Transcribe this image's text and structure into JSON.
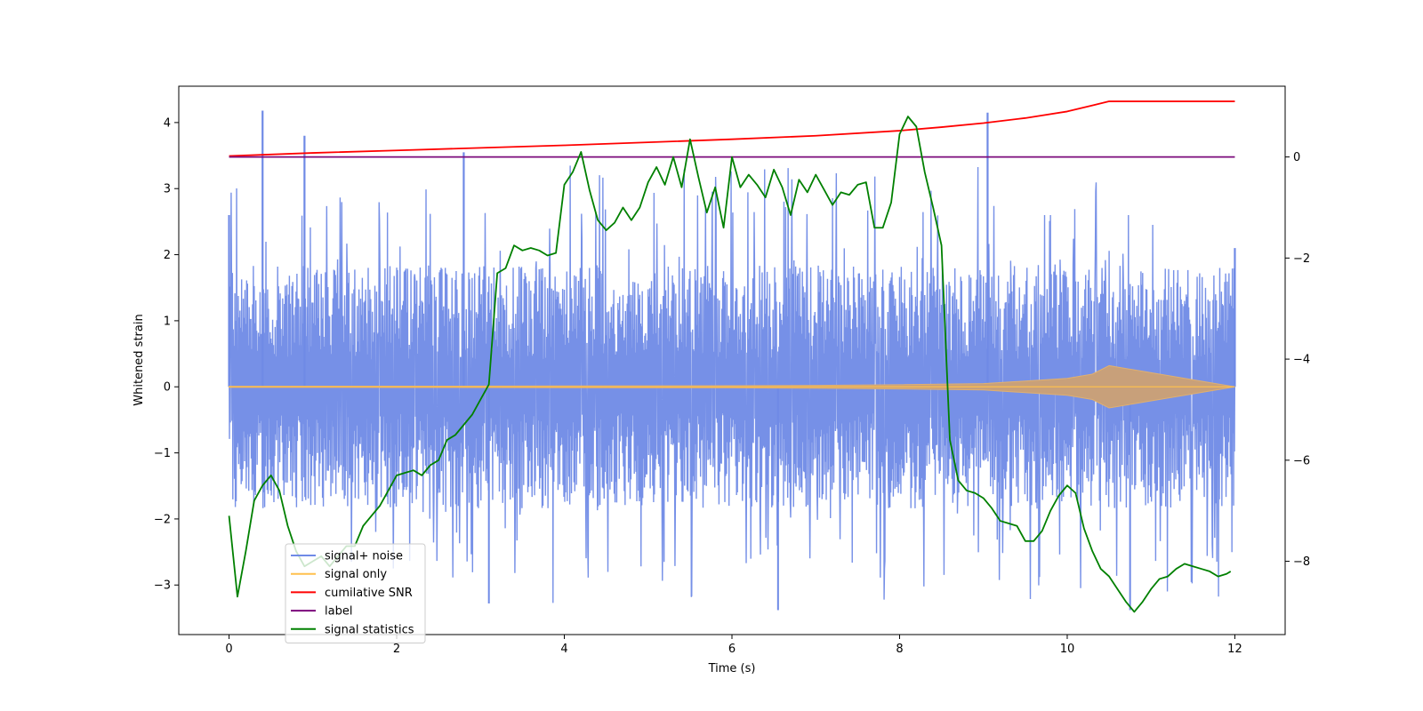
{
  "chart_data": {
    "type": "line",
    "title": "",
    "xlabel": "Time (s)",
    "ylabel": "Whitened strain",
    "ylabel_right": "",
    "xlim": [
      -0.6,
      12.6
    ],
    "ylim": [
      -3.75,
      4.55
    ],
    "ylim_right": [
      -9.45,
      1.4
    ],
    "x_ticks": [
      0,
      2,
      4,
      6,
      8,
      10,
      12
    ],
    "y_ticks": [
      -3,
      -2,
      -1,
      0,
      1,
      2,
      3,
      4
    ],
    "y_ticks_right": [
      -8,
      -6,
      -4,
      -2,
      0
    ],
    "grid": false,
    "legend_position": "lower-left",
    "noise_envelope": {
      "t_start": 0,
      "t_end": 12,
      "typical_high": 1.6,
      "typical_low": -1.8,
      "spike_max": 4.18,
      "spike_min": -3.38
    },
    "series": [
      {
        "name": "signal+ noise",
        "axis": "left",
        "color": "#6f8ae6",
        "description_values": "dense whitened noise around 0 spanning roughly -3.4 to 4.2",
        "x": [
          0,
          0.4,
          0.9,
          2.8,
          9.05,
          12
        ],
        "values": [
          2.6,
          4.18,
          3.8,
          3.55,
          4.15,
          2.1
        ]
      },
      {
        "name": "signal only",
        "axis": "left",
        "color": "#ffc04d",
        "x": [
          0,
          2,
          4,
          6,
          7,
          8,
          9,
          10,
          10.3,
          10.5,
          12
        ],
        "values": [
          0.005,
          0.006,
          0.008,
          0.01,
          0.014,
          0.02,
          0.03,
          0.08,
          0.12,
          0.2,
          0
        ]
      },
      {
        "name": "cumilative SNR",
        "axis": "right",
        "color": "#ff0000",
        "x": [
          0,
          1,
          2,
          3,
          4,
          5,
          6,
          7,
          8,
          8.5,
          9,
          9.5,
          10,
          10.3,
          10.5,
          12
        ],
        "values": [
          0.02,
          0.08,
          0.13,
          0.18,
          0.23,
          0.29,
          0.35,
          0.42,
          0.52,
          0.59,
          0.67,
          0.77,
          0.9,
          1.02,
          1.1,
          1.1
        ]
      },
      {
        "name": "label",
        "axis": "right",
        "color": "#7b0a7b",
        "x": [
          0,
          12
        ],
        "values": [
          0,
          0
        ]
      },
      {
        "name": "signal statistics",
        "axis": "right",
        "color": "#008000",
        "x": [
          0,
          0.1,
          0.2,
          0.3,
          0.4,
          0.5,
          0.6,
          0.7,
          0.8,
          0.9,
          1.0,
          1.1,
          1.2,
          1.3,
          1.4,
          1.5,
          1.6,
          1.7,
          1.8,
          1.9,
          2.0,
          2.1,
          2.2,
          2.3,
          2.4,
          2.5,
          2.6,
          2.7,
          2.8,
          2.9,
          3.0,
          3.1,
          3.2,
          3.3,
          3.4,
          3.5,
          3.6,
          3.7,
          3.8,
          3.9,
          4.0,
          4.1,
          4.2,
          4.3,
          4.4,
          4.5,
          4.6,
          4.7,
          4.8,
          4.9,
          5.0,
          5.1,
          5.2,
          5.3,
          5.4,
          5.5,
          5.6,
          5.7,
          5.8,
          5.9,
          6.0,
          6.1,
          6.2,
          6.3,
          6.4,
          6.5,
          6.6,
          6.7,
          6.8,
          6.9,
          7.0,
          7.1,
          7.2,
          7.3,
          7.4,
          7.5,
          7.6,
          7.7,
          7.8,
          7.9,
          8.0,
          8.1,
          8.2,
          8.3,
          8.4,
          8.5,
          8.6,
          8.7,
          8.8,
          8.9,
          9.0,
          9.1,
          9.2,
          9.3,
          9.4,
          9.5,
          9.6,
          9.7,
          9.8,
          9.9,
          10.0,
          10.1,
          10.2,
          10.3,
          10.4,
          10.5,
          10.6,
          10.7,
          10.8,
          10.9,
          11.0,
          11.1,
          11.2,
          11.3,
          11.4,
          11.5,
          11.6,
          11.7,
          11.8,
          11.9,
          11.95
        ],
        "values": [
          -7.1,
          -8.7,
          -7.8,
          -6.8,
          -6.5,
          -6.3,
          -6.6,
          -7.3,
          -7.8,
          -8.1,
          -8.0,
          -7.9,
          -8.1,
          -7.9,
          -7.7,
          -7.7,
          -7.3,
          -7.1,
          -6.9,
          -6.6,
          -6.3,
          -6.25,
          -6.2,
          -6.3,
          -6.1,
          -6.0,
          -5.6,
          -5.5,
          -5.3,
          -5.1,
          -4.8,
          -4.5,
          -2.3,
          -2.2,
          -1.75,
          -1.85,
          -1.8,
          -1.85,
          -1.95,
          -1.9,
          -0.55,
          -0.3,
          0.1,
          -0.65,
          -1.25,
          -1.45,
          -1.3,
          -1.0,
          -1.25,
          -1.0,
          -0.5,
          -0.2,
          -0.55,
          0.0,
          -0.6,
          0.35,
          -0.4,
          -1.1,
          -0.6,
          -1.4,
          0.0,
          -0.6,
          -0.35,
          -0.55,
          -0.8,
          -0.25,
          -0.6,
          -1.15,
          -0.45,
          -0.7,
          -0.35,
          -0.65,
          -0.95,
          -0.7,
          -0.75,
          -0.55,
          -0.5,
          -1.4,
          -1.4,
          -0.9,
          0.45,
          0.8,
          0.6,
          -0.3,
          -1.0,
          -1.75,
          -5.6,
          -6.4,
          -6.6,
          -6.65,
          -6.75,
          -6.95,
          -7.2,
          -7.25,
          -7.3,
          -7.6,
          -7.6,
          -7.4,
          -7.0,
          -6.7,
          -6.5,
          -6.65,
          -7.35,
          -7.8,
          -8.15,
          -8.3,
          -8.55,
          -8.8,
          -9.0,
          -8.8,
          -8.55,
          -8.35,
          -8.3,
          -8.15,
          -8.05,
          -8.1,
          -8.15,
          -8.2,
          -8.3,
          -8.25,
          -8.2
        ]
      }
    ]
  }
}
